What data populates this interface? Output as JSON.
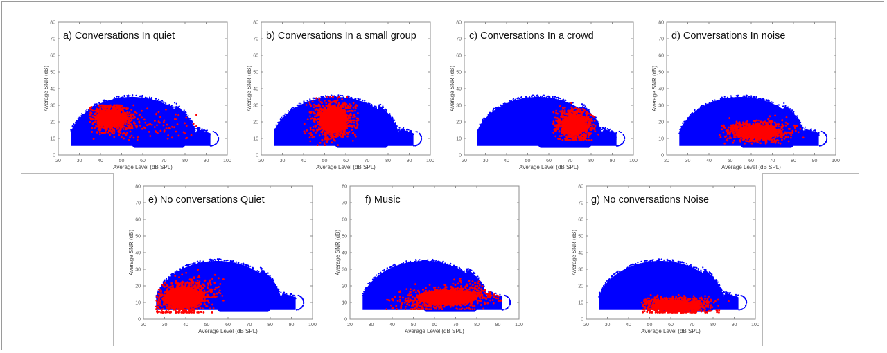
{
  "figure": {
    "colors": {
      "background_points": "#0000ff",
      "highlight_points": "#ff0000",
      "axes": "#8c8c8c"
    }
  },
  "chart_data": [
    {
      "type": "scatter",
      "title": "a) Conversations In quiet",
      "xlabel": "Average Level (dB SPL)",
      "ylabel": "Average SNR (dB)",
      "xlim": [
        20,
        100
      ],
      "ylim": [
        0,
        80
      ],
      "xticks": [
        20,
        30,
        40,
        50,
        60,
        70,
        80,
        90,
        100
      ],
      "yticks": [
        0,
        10,
        20,
        30,
        40,
        50,
        60,
        70,
        80
      ],
      "grid": false,
      "series": [
        {
          "color": "#0000ff",
          "x_range": [
            26,
            96
          ],
          "y_range": [
            4,
            37
          ],
          "peak": [
            55,
            35
          ]
        },
        {
          "color": "#ff0000",
          "center": [
            45,
            22
          ],
          "spread": [
            5,
            4
          ],
          "x_range": [
            35,
            88
          ],
          "y_range": [
            9,
            30
          ]
        }
      ]
    },
    {
      "type": "scatter",
      "title": "b) Conversations In a small group",
      "xlabel": "Average Level (dB SPL)",
      "ylabel": "Average SNR (dB)",
      "xlim": [
        20,
        100
      ],
      "ylim": [
        0,
        80
      ],
      "xticks": [
        20,
        30,
        40,
        50,
        60,
        70,
        80,
        90,
        100
      ],
      "yticks": [
        0,
        10,
        20,
        30,
        40,
        50,
        60,
        70,
        80
      ],
      "grid": false,
      "series": [
        {
          "color": "#0000ff",
          "x_range": [
            26,
            96
          ],
          "y_range": [
            4,
            37
          ],
          "peak": [
            55,
            35
          ]
        },
        {
          "color": "#ff0000",
          "center": [
            54,
            21
          ],
          "spread": [
            5,
            6
          ],
          "x_range": [
            40,
            66
          ],
          "y_range": [
            6,
            35
          ]
        }
      ]
    },
    {
      "type": "scatter",
      "title": "c) Conversations In a crowd",
      "xlabel": "Average Level (dB SPL)",
      "ylabel": "Average SNR (dB)",
      "xlim": [
        20,
        100
      ],
      "ylim": [
        0,
        80
      ],
      "xticks": [
        20,
        30,
        40,
        50,
        60,
        70,
        80,
        90,
        100
      ],
      "yticks": [
        0,
        10,
        20,
        30,
        40,
        50,
        60,
        70,
        80
      ],
      "grid": false,
      "series": [
        {
          "color": "#0000ff",
          "x_range": [
            26,
            96
          ],
          "y_range": [
            4,
            37
          ],
          "peak": [
            55,
            35
          ]
        },
        {
          "color": "#ff0000",
          "center": [
            72,
            18
          ],
          "spread": [
            4,
            4.5
          ],
          "x_range": [
            62,
            85
          ],
          "y_range": [
            9,
            34
          ]
        }
      ]
    },
    {
      "type": "scatter",
      "title": "d) Conversations In noise",
      "xlabel": "Average Level (dB SPL)",
      "ylabel": "Average SNR (dB)",
      "xlim": [
        20,
        100
      ],
      "ylim": [
        0,
        80
      ],
      "xticks": [
        20,
        30,
        40,
        50,
        60,
        70,
        80,
        90,
        100
      ],
      "yticks": [
        0,
        10,
        20,
        30,
        40,
        50,
        60,
        70,
        80
      ],
      "grid": false,
      "series": [
        {
          "color": "#0000ff",
          "x_range": [
            26,
            96
          ],
          "y_range": [
            4,
            37
          ],
          "peak": [
            55,
            35
          ]
        },
        {
          "color": "#ff0000",
          "center": [
            63,
            14
          ],
          "spread": [
            7,
            3
          ],
          "x_range": [
            45,
            92
          ],
          "y_range": [
            7,
            30
          ]
        }
      ]
    },
    {
      "type": "scatter",
      "title": "e) No conversations Quiet",
      "xlabel": "Average Level (dB SPL)",
      "ylabel": "Average SNR (dB)",
      "xlim": [
        20,
        100
      ],
      "ylim": [
        0,
        80
      ],
      "xticks": [
        20,
        30,
        40,
        50,
        60,
        70,
        80,
        90,
        100
      ],
      "yticks": [
        0,
        10,
        20,
        30,
        40,
        50,
        60,
        70,
        80
      ],
      "grid": false,
      "series": [
        {
          "color": "#0000ff",
          "x_range": [
            26,
            96
          ],
          "y_range": [
            4,
            37
          ],
          "peak": [
            55,
            35
          ]
        },
        {
          "color": "#ff0000",
          "center": [
            39,
            13
          ],
          "spread": [
            7,
            5
          ],
          "x_range": [
            26,
            58
          ],
          "y_range": [
            4,
            32
          ]
        }
      ]
    },
    {
      "type": "scatter",
      "title": "f) Music",
      "xlabel": "Average Level (dB SPL)",
      "ylabel": "Average SNR (dB)",
      "xlim": [
        20,
        100
      ],
      "ylim": [
        0,
        80
      ],
      "xticks": [
        20,
        30,
        40,
        50,
        60,
        70,
        80,
        90,
        100
      ],
      "yticks": [
        0,
        10,
        20,
        30,
        40,
        50,
        60,
        70,
        80
      ],
      "grid": false,
      "series": [
        {
          "color": "#0000ff",
          "x_range": [
            26,
            96
          ],
          "y_range": [
            4,
            37
          ],
          "peak": [
            55,
            35
          ]
        },
        {
          "color": "#ff0000",
          "center": [
            66,
            13
          ],
          "spread": [
            11,
            3.5
          ],
          "x_range": [
            37,
            92
          ],
          "y_range": [
            6,
            34
          ]
        }
      ]
    },
    {
      "type": "scatter",
      "title": "g) No conversations Noise",
      "xlabel": "Average Level (dB SPL)",
      "ylabel": "Average SNR (dB)",
      "xlim": [
        20,
        100
      ],
      "ylim": [
        0,
        80
      ],
      "xticks": [
        20,
        30,
        40,
        50,
        60,
        70,
        80,
        90,
        100
      ],
      "yticks": [
        0,
        10,
        20,
        30,
        40,
        50,
        60,
        70,
        80
      ],
      "grid": false,
      "series": [
        {
          "color": "#0000ff",
          "x_range": [
            26,
            96
          ],
          "y_range": [
            4,
            37
          ],
          "peak": [
            55,
            35
          ]
        },
        {
          "color": "#ff0000",
          "center": [
            62,
            8
          ],
          "spread": [
            8,
            2.5
          ],
          "x_range": [
            46,
            93
          ],
          "y_range": [
            4,
            18
          ]
        }
      ]
    }
  ]
}
